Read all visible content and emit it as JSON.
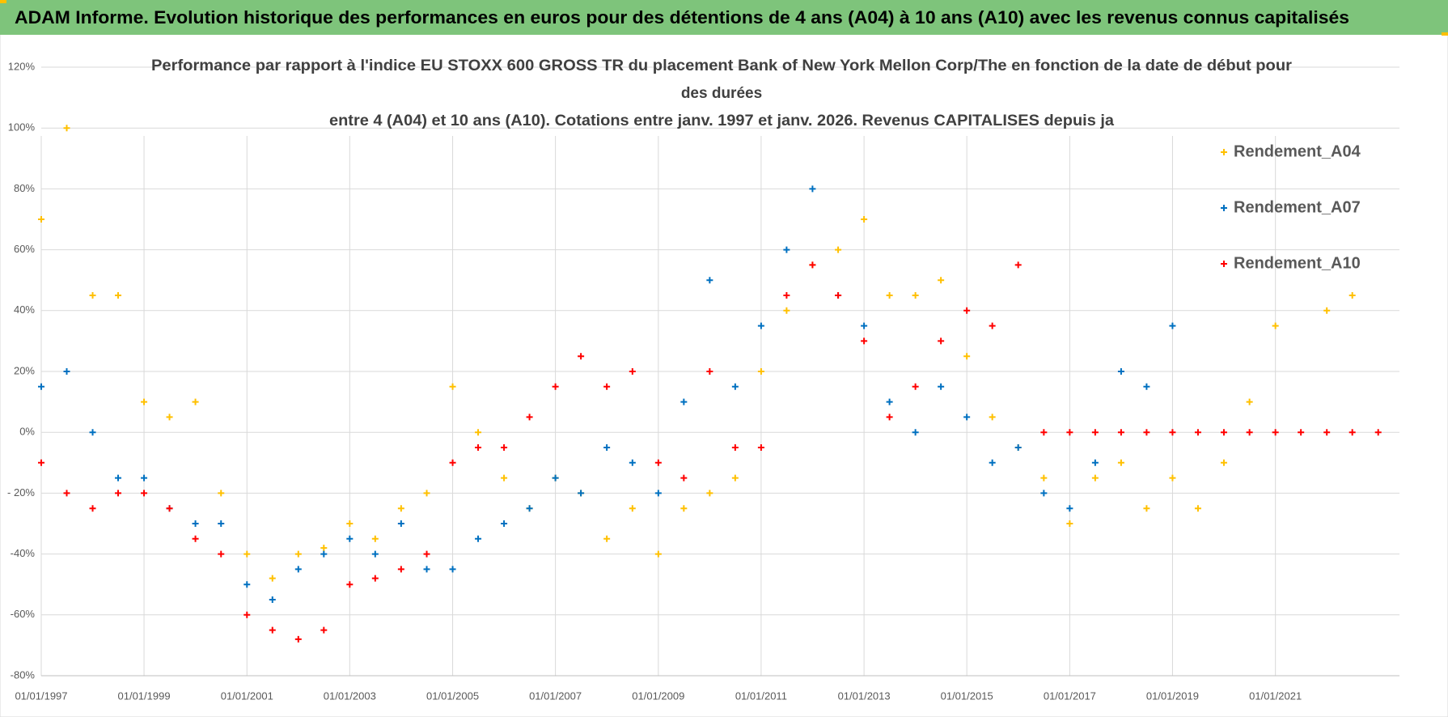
{
  "header": {
    "title": "ADAM Informe. Evolution historique des performances en euros pour des détentions de 4 ans (A04) à 10 ans (A10) avec les revenus connus capitalisés"
  },
  "chart_data": {
    "type": "scatter",
    "title": [
      "Performance par rapport à l'indice EU STOXX 600 GROSS TR  du placement Bank of New York Mellon Corp/The en fonction de la date de début pour",
      "des durées",
      "entre 4 (A04) et 10 ans (A10).  Cotations entre janv. 1997 et janv. 2026. Revenus CAPITALISES depuis ja"
    ],
    "x": [
      "01/01/1997",
      "01/07/1997",
      "01/01/1998",
      "01/07/1998",
      "01/01/1999",
      "01/07/1999",
      "01/01/2000",
      "01/07/2000",
      "01/01/2001",
      "01/07/2001",
      "01/01/2002",
      "01/07/2002",
      "01/01/2003",
      "01/07/2003",
      "01/01/2004",
      "01/07/2004",
      "01/01/2005",
      "01/07/2005",
      "01/01/2006",
      "01/07/2006",
      "01/01/2007",
      "01/07/2007",
      "01/01/2008",
      "01/07/2008",
      "01/01/2009",
      "01/07/2009",
      "01/01/2010",
      "01/07/2010",
      "01/01/2011",
      "01/07/2011",
      "01/01/2012",
      "01/07/2012",
      "01/01/2013",
      "01/07/2013",
      "01/01/2014",
      "01/07/2014",
      "01/01/2015",
      "01/07/2015",
      "01/01/2016",
      "01/07/2016",
      "01/01/2017",
      "01/07/2017",
      "01/01/2018",
      "01/07/2018",
      "01/01/2019",
      "01/07/2019",
      "01/01/2020",
      "01/07/2020",
      "01/01/2021",
      "01/07/2021",
      "01/01/2022",
      "01/07/2022",
      "01/01/2023"
    ],
    "series": [
      {
        "name": "Rendement_A04",
        "color": "#ffc000",
        "values": [
          70,
          100,
          45,
          45,
          10,
          5,
          10,
          -20,
          -40,
          -48,
          -40,
          -38,
          -30,
          -35,
          -25,
          -20,
          15,
          0,
          -15,
          -25,
          -15,
          -20,
          -35,
          -25,
          -40,
          -25,
          -20,
          -15,
          20,
          40,
          55,
          60,
          70,
          45,
          45,
          50,
          25,
          5,
          -5,
          -15,
          -30,
          -15,
          -10,
          -25,
          -15,
          -25,
          -10,
          10,
          35,
          null,
          40,
          45,
          null
        ]
      },
      {
        "name": "Rendement_A07",
        "color": "#0070c0",
        "values": [
          15,
          20,
          0,
          -15,
          -15,
          -25,
          -30,
          -30,
          -50,
          -55,
          -45,
          -40,
          -35,
          -40,
          -30,
          -45,
          -45,
          -35,
          -30,
          -25,
          -15,
          -20,
          -5,
          -10,
          -20,
          10,
          50,
          15,
          35,
          60,
          80,
          45,
          35,
          10,
          0,
          15,
          5,
          -10,
          -5,
          -20,
          -25,
          -10,
          20,
          15,
          35,
          null,
          null,
          null,
          null,
          null,
          null,
          null,
          null
        ]
      },
      {
        "name": "Rendement_A10",
        "color": "#ff0000",
        "values": [
          -10,
          -20,
          -25,
          -20,
          -20,
          -25,
          -35,
          -40,
          -60,
          -65,
          -68,
          -65,
          -50,
          -48,
          -45,
          -40,
          -10,
          -5,
          -5,
          5,
          15,
          25,
          15,
          20,
          -10,
          -15,
          20,
          -5,
          -5,
          45,
          55,
          45,
          30,
          5,
          15,
          30,
          40,
          35,
          55,
          0,
          0,
          0,
          0,
          0,
          0,
          0,
          0,
          0,
          0,
          0,
          0,
          0,
          0
        ]
      }
    ],
    "xlim": [
      "01/01/1997",
      "01/06/2023"
    ],
    "xticks": [
      "01/01/1997",
      "01/01/1999",
      "01/01/2001",
      "01/01/2003",
      "01/01/2005",
      "01/01/2007",
      "01/01/2009",
      "01/01/2011",
      "01/01/2013",
      "01/01/2015",
      "01/01/2017",
      "01/01/2019",
      "01/01/2021"
    ],
    "ylim": [
      -80,
      120
    ],
    "yticks": [
      {
        "value": -80,
        "label": "-80%"
      },
      {
        "value": -60,
        "label": "-60%"
      },
      {
        "value": -40,
        "label": "-40%"
      },
      {
        "value": -20,
        "label": "- 20%"
      },
      {
        "value": 0,
        "label": "0%"
      },
      {
        "value": 20,
        "label": "20%"
      },
      {
        "value": 40,
        "label": "40%"
      },
      {
        "value": 60,
        "label": "60%"
      },
      {
        "value": 80,
        "label": "80%"
      },
      {
        "value": 100,
        "label": "100%"
      },
      {
        "value": 120,
        "label": "120%"
      }
    ],
    "grid": true,
    "legend": "right"
  }
}
